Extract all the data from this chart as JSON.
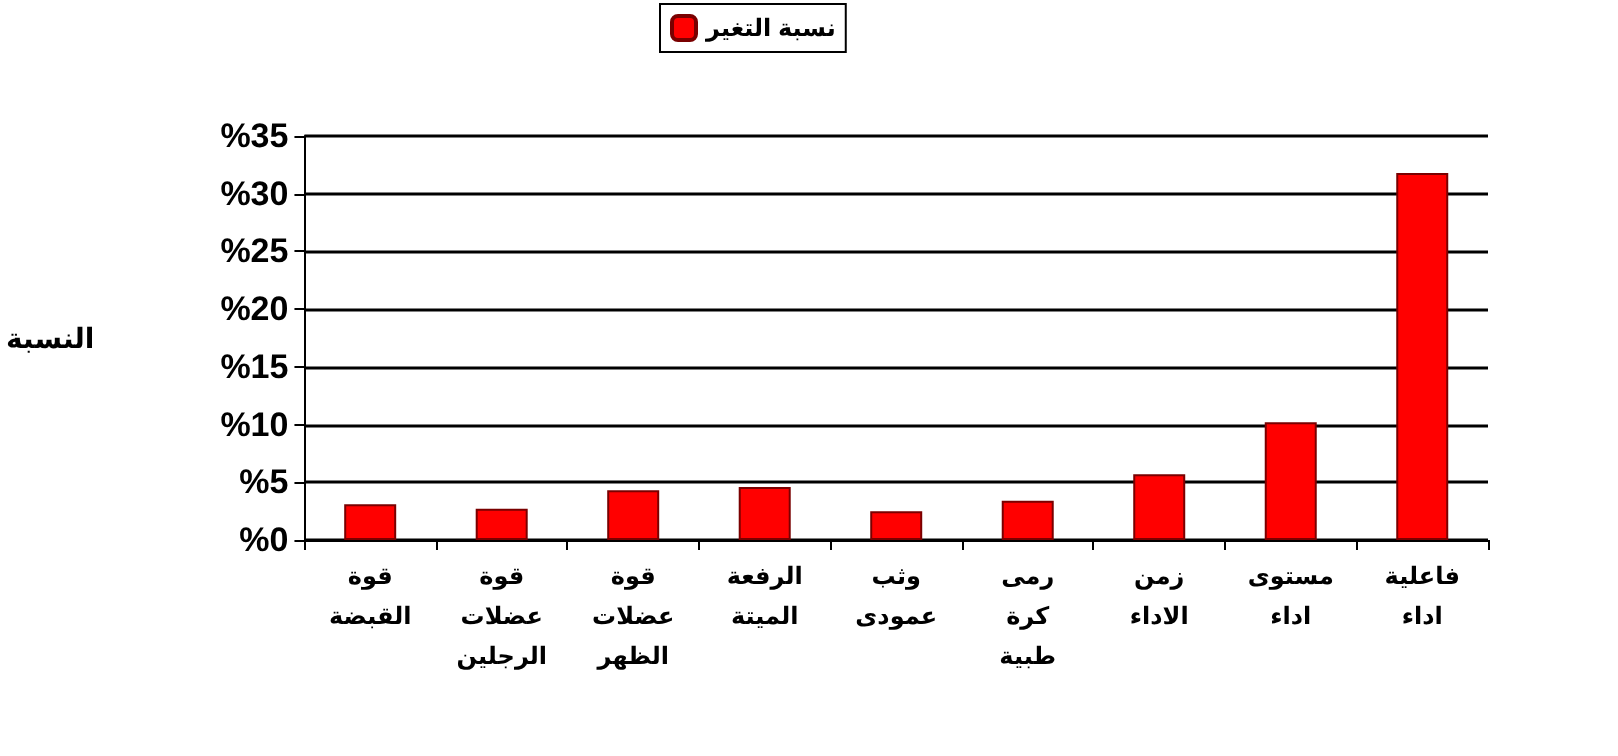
{
  "chart_data": {
    "type": "bar",
    "ylabel": "النسبة",
    "categories": [
      "قوة القبضة",
      "قوة عضلات الرجلين",
      "قوة عضلات الظهر",
      "الرفعة الميتة",
      "وثب عمودى",
      "رمى كرة طبية",
      "زمن الاداء",
      "مستوى اداء",
      "فاعلية اداء"
    ],
    "series": [
      {
        "name": "نسبة التغير",
        "color": "#ff0000",
        "values": [
          3.1,
          2.7,
          4.3,
          4.6,
          2.5,
          3.4,
          5.7,
          10.2,
          31.8
        ]
      }
    ],
    "ylim": [
      0,
      35
    ],
    "yticks": [
      {
        "value": 0,
        "label": "%0"
      },
      {
        "value": 5,
        "label": "%5"
      },
      {
        "value": 10,
        "label": "%10"
      },
      {
        "value": 15,
        "label": "%15"
      },
      {
        "value": 20,
        "label": "%20"
      },
      {
        "value": 25,
        "label": "%25"
      },
      {
        "value": 30,
        "label": "%30"
      },
      {
        "value": 35,
        "label": "%35"
      }
    ],
    "grid": "y",
    "legend": "top"
  }
}
